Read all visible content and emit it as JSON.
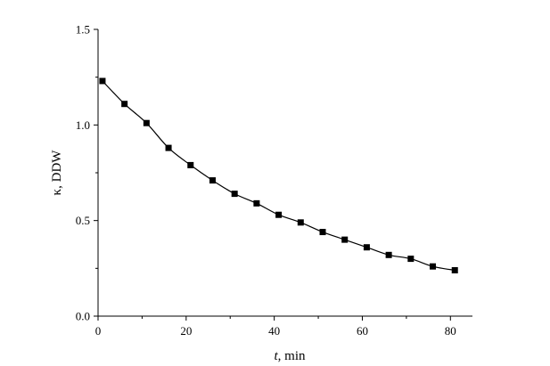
{
  "chart_data": {
    "type": "line",
    "title": "",
    "xlabel_var": "t",
    "xlabel_unit": ", min",
    "ylabel": "κ, DDW",
    "xlim": [
      0,
      85
    ],
    "ylim": [
      0.0,
      1.5
    ],
    "xticks": [
      0,
      20,
      40,
      60,
      80
    ],
    "yticks": [
      0.0,
      0.5,
      1.0,
      1.5
    ],
    "xtick_labels": [
      "0",
      "20",
      "40",
      "60",
      "80"
    ],
    "ytick_labels": [
      "0.0",
      "0.5",
      "1.0",
      "1.5"
    ],
    "grid": false,
    "marker": "square",
    "color": "#000000",
    "series": [
      {
        "x": [
          1,
          6,
          11,
          16,
          21,
          26,
          31,
          36,
          41,
          46,
          51,
          56,
          61,
          66,
          71,
          76,
          81
        ],
        "y": [
          1.23,
          1.11,
          1.01,
          0.88,
          0.79,
          0.71,
          0.64,
          0.59,
          0.53,
          0.49,
          0.44,
          0.4,
          0.36,
          0.32,
          0.3,
          0.26,
          0.24
        ]
      }
    ]
  }
}
